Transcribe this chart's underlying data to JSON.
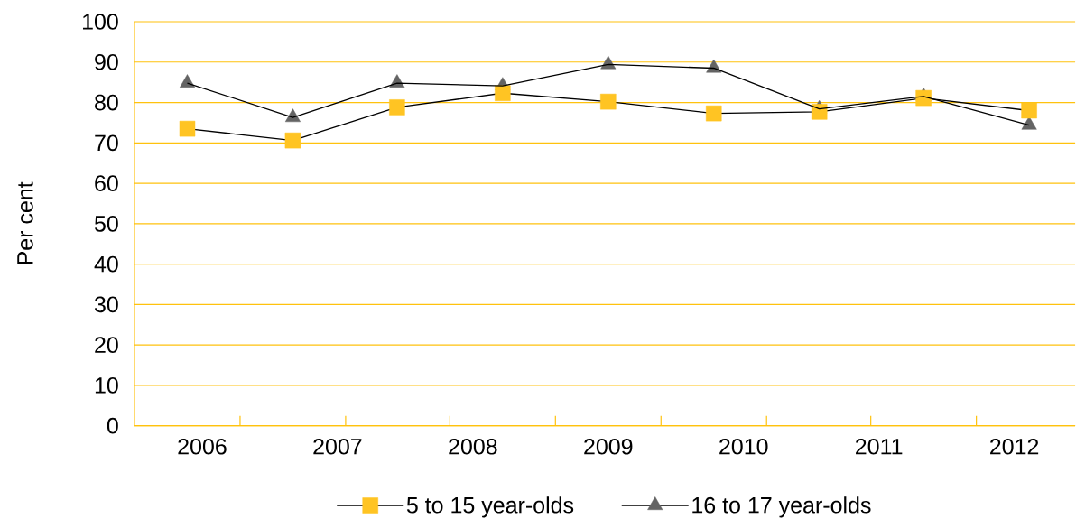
{
  "chart_data": {
    "type": "line",
    "ylabel": "Per cent",
    "x": [
      2005.89,
      2006.67,
      2007.44,
      2008.22,
      2009.0,
      2009.78,
      2010.56,
      2011.33,
      2012.11
    ],
    "series": [
      {
        "name": "5 to 15 year-olds",
        "color": "#ffc423",
        "marker": "square",
        "values": [
          73.5,
          70.6,
          78.8,
          82.3,
          80.2,
          77.3,
          77.7,
          81.1,
          78.0
        ]
      },
      {
        "name": "16 to 17 year-olds",
        "color": "#646464",
        "marker": "triangle",
        "values": [
          84.8,
          76.3,
          84.8,
          84.1,
          89.4,
          88.5,
          78.4,
          81.5,
          74.4
        ]
      }
    ],
    "xlim": [
      2005.5,
      2012.45
    ],
    "xticks": [
      2006,
      {
        "value": 2006.28,
        "label": null
      },
      2007,
      {
        "value": 2007.06,
        "label": null
      },
      {
        "value": 2007.83,
        "label": null
      },
      2008,
      {
        "value": 2008.61,
        "label": null
      },
      2009,
      {
        "value": 2009.39,
        "label": null
      },
      2010,
      {
        "value": 2010.17,
        "label": null
      },
      {
        "value": 2010.94,
        "label": null
      },
      2011,
      {
        "value": 2011.72,
        "label": null
      },
      2012
    ],
    "ylim": [
      0,
      100
    ],
    "yticks": [
      0,
      10,
      20,
      30,
      40,
      50,
      60,
      70,
      80,
      90,
      100
    ],
    "grid": "y",
    "legend": "bottom"
  }
}
